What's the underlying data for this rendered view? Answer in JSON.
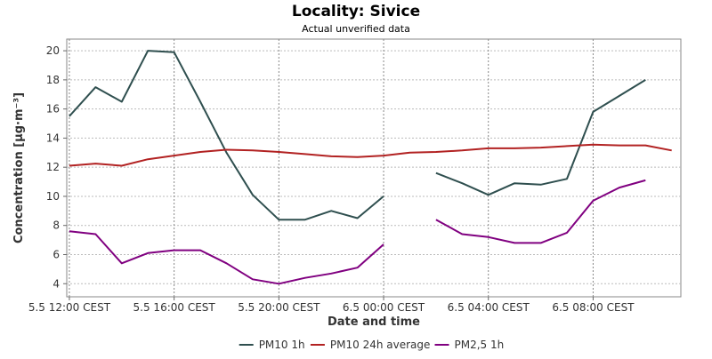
{
  "chart_data": {
    "type": "line",
    "title": "Locality: Sivice",
    "subtitle": "Actual unverified data",
    "xlabel": "Date and time",
    "ylabel": "Concentration [µg·m⁻³]",
    "ylim": [
      3.1,
      20.8
    ],
    "yticks": [
      4,
      6,
      8,
      10,
      12,
      14,
      16,
      18,
      20
    ],
    "x_hours_range": [
      -0.1,
      23.35
    ],
    "x_hour_origin_label": "5.5 12:00 CEST",
    "xticks": [
      {
        "hour": 0,
        "label": "5.5 12:00 CEST"
      },
      {
        "hour": 4,
        "label": "5.5 16:00 CEST"
      },
      {
        "hour": 8,
        "label": "5.5 20:00 CEST"
      },
      {
        "hour": 12,
        "label": "6.5 00:00 CEST"
      },
      {
        "hour": 16,
        "label": "6.5 04:00 CEST"
      },
      {
        "hour": 20,
        "label": "6.5 08:00 CEST"
      }
    ],
    "grid": true,
    "legend_position": "bottom",
    "series": [
      {
        "name": "PM10 1h",
        "color": "#2f4f4f",
        "values": [
          15.5,
          17.5,
          16.5,
          20.0,
          19.9,
          16.5,
          13.0,
          10.1,
          8.4,
          8.4,
          9.0,
          8.5,
          10.0,
          null,
          11.6,
          10.9,
          10.1,
          10.9,
          10.8,
          11.2,
          15.8,
          16.9,
          18.0
        ]
      },
      {
        "name": "PM10 24h average",
        "color": "#b22222",
        "values": [
          12.1,
          12.25,
          12.1,
          12.55,
          12.8,
          13.05,
          13.2,
          13.15,
          13.05,
          12.9,
          12.75,
          12.7,
          12.8,
          13.0,
          13.05,
          13.15,
          13.3,
          13.3,
          13.35,
          13.45,
          13.55,
          13.5,
          13.5,
          13.15
        ]
      },
      {
        "name": "PM2,5 1h",
        "color": "#800080",
        "values": [
          7.6,
          7.4,
          5.4,
          6.1,
          6.3,
          6.3,
          5.4,
          4.3,
          4.0,
          4.4,
          4.7,
          5.1,
          6.7,
          null,
          8.4,
          7.4,
          7.2,
          6.8,
          6.8,
          7.5,
          9.7,
          10.6,
          11.1
        ]
      }
    ]
  }
}
